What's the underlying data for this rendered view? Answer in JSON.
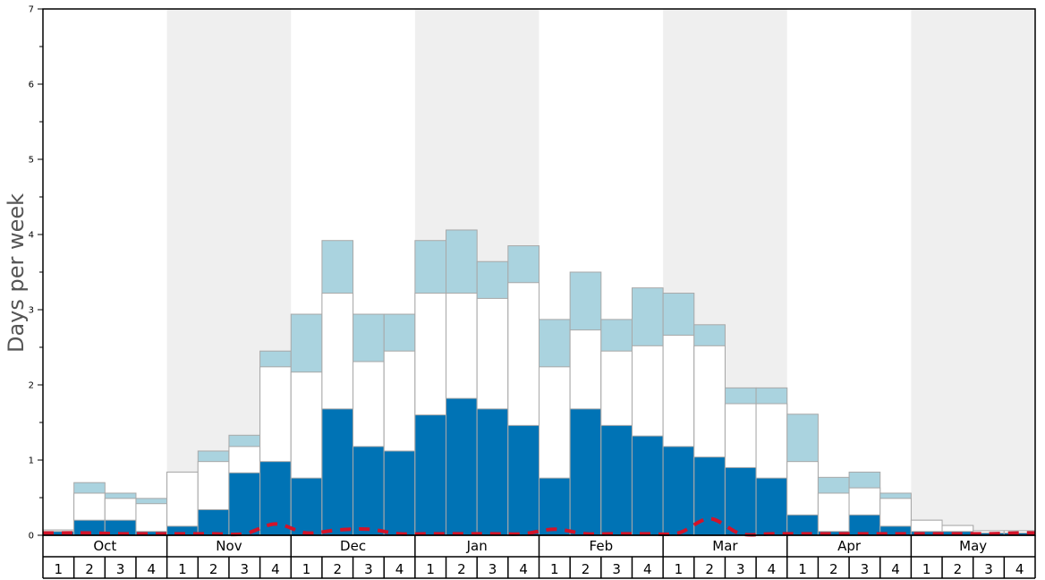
{
  "chart_data": {
    "type": "bar",
    "ylabel": "Days per week",
    "ylim": [
      0,
      7
    ],
    "yticks": [
      "0",
      "1",
      "2",
      "3",
      "4",
      "5",
      "6",
      "7"
    ],
    "months": [
      "Oct",
      "Nov",
      "Dec",
      "Jan",
      "Feb",
      "Mar",
      "Apr",
      "May"
    ],
    "week_labels": [
      "1",
      "2",
      "3",
      "4"
    ],
    "colors": {
      "dark": "#0073b5",
      "white": "#ffffff",
      "light": "#aad3df",
      "red": "#d2142a",
      "shade": "#efefef"
    },
    "series": [
      {
        "name": "dark",
        "values": [
          0.05,
          0.2,
          0.2,
          0.05,
          0.12,
          0.34,
          0.83,
          0.98,
          0.76,
          1.68,
          1.18,
          1.12,
          1.6,
          1.82,
          1.68,
          1.46,
          0.76,
          1.68,
          1.46,
          1.32,
          1.18,
          1.04,
          0.9,
          0.76,
          0.27,
          0.05,
          0.27,
          0.12,
          0.05,
          0.05,
          0.03,
          0.03
        ]
      },
      {
        "name": "white",
        "values": [
          0.07,
          0.56,
          0.49,
          0.42,
          0.84,
          0.98,
          1.18,
          2.24,
          2.17,
          3.22,
          2.31,
          2.45,
          3.22,
          3.22,
          3.15,
          3.36,
          2.24,
          2.73,
          2.45,
          2.52,
          2.66,
          2.52,
          1.75,
          1.75,
          0.98,
          0.56,
          0.63,
          0.49,
          0.2,
          0.13,
          0.06,
          0.06
        ]
      },
      {
        "name": "light",
        "values": [
          0.07,
          0.7,
          0.56,
          0.49,
          0.84,
          1.12,
          1.33,
          2.45,
          2.94,
          3.92,
          2.94,
          2.94,
          3.92,
          4.06,
          3.64,
          3.85,
          2.87,
          3.5,
          2.87,
          3.29,
          3.22,
          2.8,
          1.96,
          1.96,
          1.61,
          0.77,
          0.84,
          0.56,
          0.2,
          0.13,
          0.06,
          0.06
        ]
      },
      {
        "name": "average",
        "values": [
          0.03,
          0.03,
          0.02,
          0.02,
          0.02,
          0.02,
          0.02,
          0.15,
          0.03,
          0.07,
          0.08,
          0.02,
          0.02,
          0.02,
          0.02,
          0.02,
          0.08,
          0.02,
          0.02,
          0.02,
          0.03,
          0.22,
          0.02,
          0.02,
          0.02,
          0.02,
          0.02,
          0.02,
          0.02,
          0.02,
          0.02,
          0.03
        ]
      }
    ]
  }
}
